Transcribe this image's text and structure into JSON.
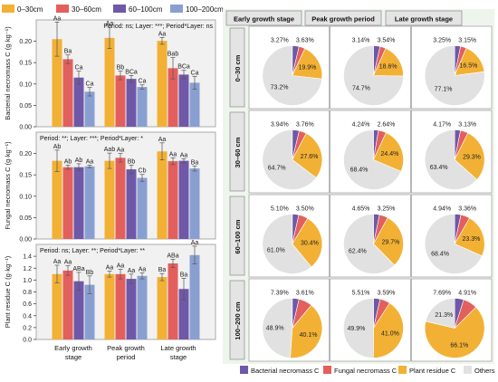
{
  "colors": {
    "layer_0_30": "#f2b134",
    "layer_30_60": "#e35f5d",
    "layer_60_100": "#6f58a8",
    "layer_100_200": "#8a9fd1",
    "bacterial": "#6f58a8",
    "fungal": "#e35f5d",
    "plant": "#f2b134",
    "others": "#e1e1e1",
    "panel_bg": "#f1f1f1",
    "grid_bg": "#eef5ec"
  },
  "legend_layers": [
    "0–30cm",
    "30–60cm",
    "60–100cm",
    "100–200cm"
  ],
  "stage_labels": [
    [
      "Early growth",
      "stage"
    ],
    [
      "Peak growth",
      "period"
    ],
    [
      "Late growth",
      "stage"
    ]
  ],
  "col_headers": [
    "Early growth stage",
    "Peak growth period",
    "Late growth stage"
  ],
  "row_headers": [
    "0–30 cm",
    "30–60 cm",
    "60–100 cm",
    "100–200 cm"
  ],
  "pie_legend": [
    "Bacterial necromass C",
    "Fungal necromass C",
    "Plant residue C",
    "Others"
  ],
  "chart_data": [
    {
      "type": "bar",
      "ylabel": "Bacterial necromass C (g·kg⁻¹)",
      "annotation": "Period: ns; Layer: ***; Period*Layer: ns",
      "categories": [
        "Early growth stage",
        "Peak growth period",
        "Late growth stage"
      ],
      "ylim": [
        0,
        0.25
      ],
      "yticks": [
        0.0,
        0.05,
        0.1,
        0.15,
        0.2
      ],
      "series": [
        {
          "name": "0–30cm",
          "values": [
            0.205,
            0.208,
            0.201
          ],
          "errors": [
            0.04,
            0.025,
            0.008
          ],
          "letters": [
            "Aa",
            "Aa",
            "Aa"
          ]
        },
        {
          "name": "30–60cm",
          "values": [
            0.158,
            0.12,
            0.137
          ],
          "errors": [
            0.01,
            0.01,
            0.025
          ],
          "letters": [
            "Ba",
            "Bb",
            "Bab"
          ]
        },
        {
          "name": "60–100cm",
          "values": [
            0.115,
            0.112,
            0.122
          ],
          "errors": [
            0.015,
            0.008,
            0.01
          ],
          "letters": [
            "Ca",
            "BCa",
            "BCa"
          ]
        },
        {
          "name": "100–200cm",
          "values": [
            0.082,
            0.093,
            0.103
          ],
          "errors": [
            0.01,
            0.005,
            0.015
          ],
          "letters": [
            "Ca",
            "Ca",
            "Ca"
          ]
        }
      ]
    },
    {
      "type": "bar",
      "ylabel": "Fungal necromass C (g·kg⁻¹)",
      "annotation": "Period: **; Layer: ***; Period*Layer: *",
      "categories": [
        "Early growth stage",
        "Peak growth period",
        "Late growth stage"
      ],
      "ylim": [
        0,
        0.25
      ],
      "yticks": [
        0.0,
        0.05,
        0.1,
        0.15,
        0.2
      ],
      "series": [
        {
          "name": "0–30cm",
          "values": [
            0.183,
            0.183,
            0.205
          ],
          "errors": [
            0.025,
            0.018,
            0.02
          ],
          "letters": [
            "Ab",
            "Aab",
            "Aa"
          ]
        },
        {
          "name": "30–60cm",
          "values": [
            0.168,
            0.19,
            0.182
          ],
          "errors": [
            0.005,
            0.01,
            0.008
          ],
          "letters": [
            "Ab",
            "Aa",
            "Aa"
          ]
        },
        {
          "name": "60–100cm",
          "values": [
            0.168,
            0.163,
            0.183
          ],
          "errors": [
            0.008,
            0.01,
            0.005
          ],
          "letters": [
            "Ab",
            "Bb",
            "Aa"
          ]
        },
        {
          "name": "100–200cm",
          "values": [
            0.17,
            0.143,
            0.165
          ],
          "errors": [
            0.003,
            0.008,
            0.006
          ],
          "letters": [
            "Aa",
            "Cb",
            "Ba"
          ]
        }
      ]
    },
    {
      "type": "bar",
      "ylabel": "Plant residue C (g·kg⁻¹)",
      "annotation": "Period: ns; Layer: **; Period*Layer: **",
      "categories": [
        "Early growth stage",
        "Peak growth period",
        "Late growth stage"
      ],
      "ylim": [
        0,
        1.6
      ],
      "yticks": [
        0.0,
        0.2,
        0.4,
        0.6,
        0.8,
        1.0,
        1.2,
        1.4
      ],
      "series": [
        {
          "name": "0–30cm",
          "values": [
            1.1,
            1.1,
            1.05
          ],
          "errors": [
            0.15,
            0.05,
            0.06
          ],
          "letters": [
            "Aa",
            "Aa",
            "Ba"
          ]
        },
        {
          "name": "30–60cm",
          "values": [
            1.16,
            1.1,
            1.28
          ],
          "errors": [
            0.08,
            0.08,
            0.07
          ],
          "letters": [
            "Aa",
            "Aa",
            "ABa"
          ]
        },
        {
          "name": "60–100cm",
          "values": [
            0.98,
            1.02,
            0.85
          ],
          "errors": [
            0.15,
            0.08,
            0.18
          ],
          "letters": [
            "ABa",
            "Aa",
            "Ba"
          ]
        },
        {
          "name": "100–200cm",
          "values": [
            0.92,
            1.07,
            1.42
          ],
          "errors": [
            0.15,
            0.05,
            0.15
          ],
          "letters": [
            "Bb",
            "Aa",
            "Aa"
          ]
        }
      ]
    },
    {
      "type": "pie",
      "rows": [
        "0–30 cm",
        "30–60 cm",
        "60–100 cm",
        "100–200 cm"
      ],
      "columns": [
        "Early growth stage",
        "Peak growth period",
        "Late growth stage"
      ],
      "categories": [
        "Bacterial necromass C",
        "Fungal necromass C",
        "Plant residue C",
        "Others"
      ],
      "values": [
        [
          [
            3.63,
            3.27,
            19.9,
            73.2
          ],
          [
            3.54,
            3.14,
            18.6,
            74.7
          ],
          [
            3.15,
            3.25,
            16.5,
            77.1
          ]
        ],
        [
          [
            3.76,
            3.94,
            27.6,
            64.7
          ],
          [
            2.64,
            4.24,
            24.4,
            68.4
          ],
          [
            3.13,
            4.17,
            29.3,
            63.4
          ]
        ],
        [
          [
            3.5,
            5.1,
            30.4,
            61.0
          ],
          [
            3.25,
            4.65,
            29.7,
            62.4
          ],
          [
            3.36,
            4.94,
            23.3,
            68.4
          ]
        ],
        [
          [
            3.61,
            7.39,
            40.1,
            48.9
          ],
          [
            3.59,
            5.51,
            41.0,
            49.9
          ],
          [
            4.91,
            7.69,
            66.1,
            21.3
          ]
        ]
      ],
      "labels": [
        [
          [
            "3.63%",
            "3.27%",
            "19.9%",
            "73.2%"
          ],
          [
            "3.54%",
            "3.14%",
            "18.6%",
            "74.7%"
          ],
          [
            "3.15%",
            "3.25%",
            "16.5%",
            "77.1%"
          ]
        ],
        [
          [
            "3.76%",
            "3.94%",
            "27.6%",
            "64.7%"
          ],
          [
            "2.64%",
            "4.24%",
            "24.4%",
            "68.4%"
          ],
          [
            "3.13%",
            "4.17%",
            "29.3%",
            "63.4%"
          ]
        ],
        [
          [
            "3.50%",
            "5.10%",
            "30.4%",
            "61.0%"
          ],
          [
            "3.25%",
            "4.65%",
            "29.7%",
            "62.4%"
          ],
          [
            "3.36%",
            "4.94%",
            "23.3%",
            "68.4%"
          ]
        ],
        [
          [
            "3.61%",
            "7.39%",
            "40.1%",
            "48.9%"
          ],
          [
            "3.59%",
            "5.51%",
            "41.0%",
            "49.9%"
          ],
          [
            "4.91%",
            "7.69%",
            "66.1%",
            "21.3%"
          ]
        ]
      ]
    }
  ]
}
